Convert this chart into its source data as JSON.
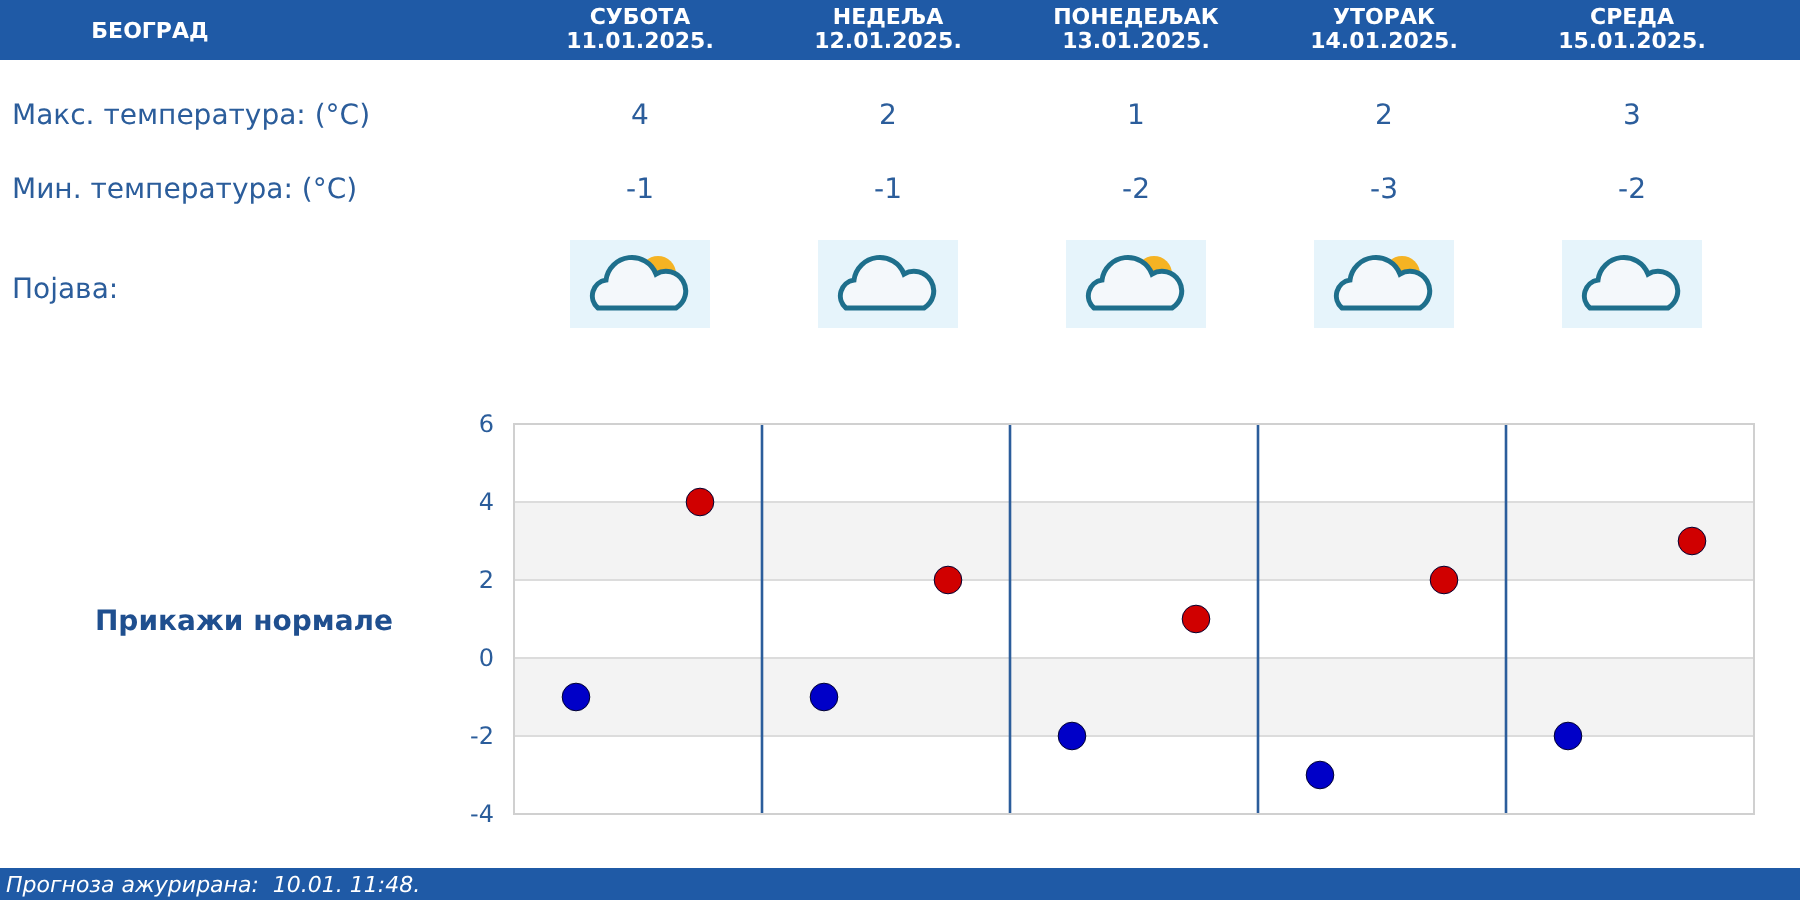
{
  "chart_data": [
    {
      "type": "other",
      "title": "БЕОГРАД",
      "categories": [
        "СУБОТА\n11.01.2025.",
        "НЕДЕЉА\n12.01.2025.",
        "ПОНЕДЕЉАК\n13.01.2025.",
        "УТОРАК\n14.01.2025.",
        "СРЕДА\n15.01.2025."
      ],
      "series": [
        {
          "name": "Макс. температура: (°C)",
          "values": [
            4,
            2,
            1,
            2,
            3
          ]
        },
        {
          "name": "Мин. температура: (°C)",
          "values": [
            -1,
            -1,
            -2,
            -3,
            -2
          ]
        }
      ],
      "data_labels": true,
      "annotations": [
        "Појава:"
      ]
    },
    {
      "type": "scatter",
      "categories": [
        null,
        null,
        null,
        null,
        null,
        null,
        null,
        null,
        null,
        null
      ],
      "series": [
        {
          "color": "#0000c8",
          "values": [
            -1,
            null,
            -1,
            null,
            -2,
            null,
            -3,
            null,
            -2,
            null
          ]
        },
        {
          "color": "#d00000",
          "values": [
            null,
            4,
            null,
            2,
            null,
            1,
            null,
            2,
            null,
            3
          ]
        }
      ],
      "ylim": [
        -4,
        6
      ],
      "yticks": [
        -4,
        -2,
        0,
        2,
        4,
        6
      ],
      "grid": true,
      "tick_labels": "y",
      "marker": "circle",
      "annotations": [
        "Прикажи нормале",
        "Прогноза ажурирана:  10.01. 11:48."
      ]
    }
  ]
}
